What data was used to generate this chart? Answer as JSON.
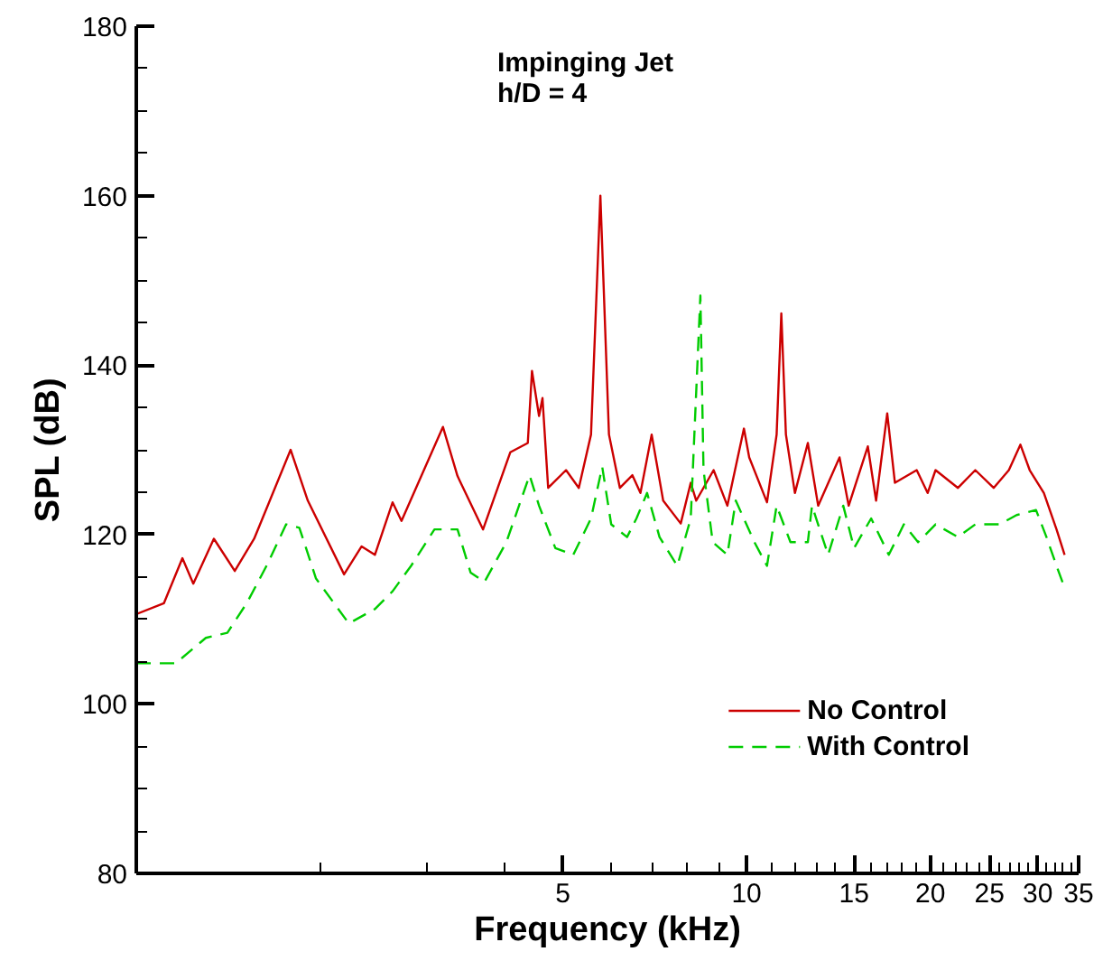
{
  "chart_data": {
    "type": "line",
    "xlabel": "Frequency (kHz)",
    "ylabel": "SPL (dB)",
    "annotations": [
      "Impinging Jet",
      "h/D = 4"
    ],
    "log": "x",
    "grid": false,
    "legend": "bottom right",
    "xlim": [
      1,
      35
    ],
    "ylim": [
      80,
      180
    ],
    "xticks": [
      {
        "value": 2,
        "label": null
      },
      {
        "value": 3,
        "label": null
      },
      {
        "value": 4,
        "label": null
      },
      5,
      {
        "value": 6,
        "label": null
      },
      {
        "value": 7,
        "label": null
      },
      {
        "value": 8,
        "label": null
      },
      {
        "value": 9,
        "label": null
      },
      10,
      {
        "value": 11,
        "label": null
      },
      {
        "value": 12,
        "label": null
      },
      {
        "value": 13,
        "label": null
      },
      {
        "value": 14,
        "label": null
      },
      15,
      {
        "value": 16,
        "label": null
      },
      {
        "value": 17,
        "label": null
      },
      {
        "value": 18,
        "label": null
      },
      {
        "value": 19,
        "label": null
      },
      20,
      {
        "value": 21,
        "label": null
      },
      {
        "value": 22,
        "label": null
      },
      {
        "value": 23,
        "label": null
      },
      {
        "value": 24,
        "label": null
      },
      25,
      {
        "value": 26,
        "label": null
      },
      {
        "value": 27,
        "label": null
      },
      {
        "value": 28,
        "label": null
      },
      {
        "value": 29,
        "label": null
      },
      30,
      {
        "value": 31,
        "label": null
      },
      {
        "value": 32,
        "label": null
      },
      {
        "value": 33,
        "label": null
      },
      {
        "value": 34,
        "label": null
      },
      35
    ],
    "yticks": [
      80,
      {
        "value": 85,
        "label": null
      },
      {
        "value": 90,
        "label": null
      },
      {
        "value": 95,
        "label": null
      },
      100,
      {
        "value": 105,
        "label": null
      },
      {
        "value": 110,
        "label": null
      },
      {
        "value": 115,
        "label": null
      },
      120,
      {
        "value": 125,
        "label": null
      },
      {
        "value": 130,
        "label": null
      },
      {
        "value": 135,
        "label": null
      },
      140,
      {
        "value": 145,
        "label": null
      },
      {
        "value": 150,
        "label": null
      },
      {
        "value": 155,
        "label": null
      },
      160,
      {
        "value": 165,
        "label": null
      },
      {
        "value": 170,
        "label": null
      },
      {
        "value": 175,
        "label": null
      },
      180
    ],
    "series": [
      {
        "name": "No Control",
        "color": "#cc0000",
        "line_style": "solid",
        "x": [
          1.0,
          1.11,
          1.19,
          1.24,
          1.34,
          1.45,
          1.56,
          1.79,
          1.91,
          2.19,
          2.34,
          2.46,
          2.63,
          2.72,
          3.18,
          3.36,
          3.7,
          4.1,
          4.38,
          4.45,
          4.57,
          4.63,
          4.73,
          5.06,
          5.31,
          5.56,
          5.76,
          5.95,
          6.2,
          6.5,
          6.7,
          6.99,
          7.3,
          7.8,
          8.1,
          8.27,
          8.83,
          9.3,
          9.9,
          10.1,
          10.8,
          11.2,
          11.4,
          11.6,
          12.0,
          12.6,
          13.1,
          14.2,
          14.7,
          15.8,
          16.3,
          17.0,
          17.5,
          19.0,
          19.8,
          20.4,
          22.2,
          23.7,
          25.4,
          26.9,
          28.1,
          29.1,
          30.7,
          32.2,
          33.2
        ],
        "values": [
          110.6,
          111.9,
          117.2,
          114.2,
          119.5,
          115.7,
          119.5,
          130.0,
          124.0,
          115.3,
          118.6,
          117.6,
          123.8,
          121.6,
          132.7,
          126.9,
          120.6,
          129.7,
          130.8,
          139.3,
          134.0,
          136.1,
          125.5,
          127.6,
          125.5,
          131.8,
          160.0,
          131.8,
          125.5,
          127.0,
          124.9,
          131.8,
          124.0,
          121.3,
          126.1,
          124.0,
          127.6,
          123.4,
          132.5,
          129.1,
          123.8,
          131.8,
          146.1,
          131.8,
          124.9,
          130.8,
          123.4,
          129.1,
          123.4,
          130.4,
          124.0,
          134.3,
          126.1,
          127.6,
          124.9,
          127.6,
          125.5,
          127.6,
          125.5,
          127.6,
          130.6,
          127.6,
          124.9,
          120.6,
          117.6
        ]
      },
      {
        "name": "With Control",
        "color": "#00cc00",
        "line_style": "dashed",
        "x": [
          1.0,
          1.07,
          1.16,
          1.3,
          1.41,
          1.52,
          1.64,
          1.76,
          1.85,
          1.97,
          2.23,
          2.46,
          2.63,
          2.82,
          3.08,
          3.36,
          3.53,
          3.72,
          4.04,
          4.41,
          4.57,
          4.86,
          5.2,
          5.56,
          5.8,
          6.0,
          6.37,
          6.6,
          6.87,
          7.2,
          7.7,
          8.1,
          8.4,
          8.5,
          8.8,
          9.3,
          9.6,
          10.3,
          10.8,
          11.2,
          11.8,
          12.6,
          12.8,
          13.6,
          14.4,
          15.0,
          16.0,
          17.1,
          18.1,
          19.1,
          20.4,
          22.2,
          23.7,
          26.0,
          27.7,
          29.8,
          31.0,
          32.2,
          33.2
        ],
        "values": [
          104.8,
          104.8,
          104.8,
          107.8,
          108.4,
          112.0,
          116.5,
          121.2,
          120.8,
          114.8,
          109.5,
          111.2,
          113.3,
          116.3,
          120.6,
          120.6,
          115.5,
          114.4,
          119.1,
          127.0,
          123.4,
          118.4,
          117.6,
          121.9,
          128.0,
          121.2,
          119.7,
          121.9,
          124.9,
          119.7,
          116.3,
          121.9,
          148.2,
          127.6,
          119.1,
          117.6,
          124.0,
          119.1,
          116.3,
          123.4,
          119.1,
          119.1,
          123.4,
          117.6,
          123.4,
          118.4,
          121.9,
          117.6,
          121.2,
          119.1,
          121.2,
          119.7,
          121.2,
          121.2,
          122.3,
          122.9,
          119.7,
          116.3,
          113.7
        ]
      }
    ]
  }
}
